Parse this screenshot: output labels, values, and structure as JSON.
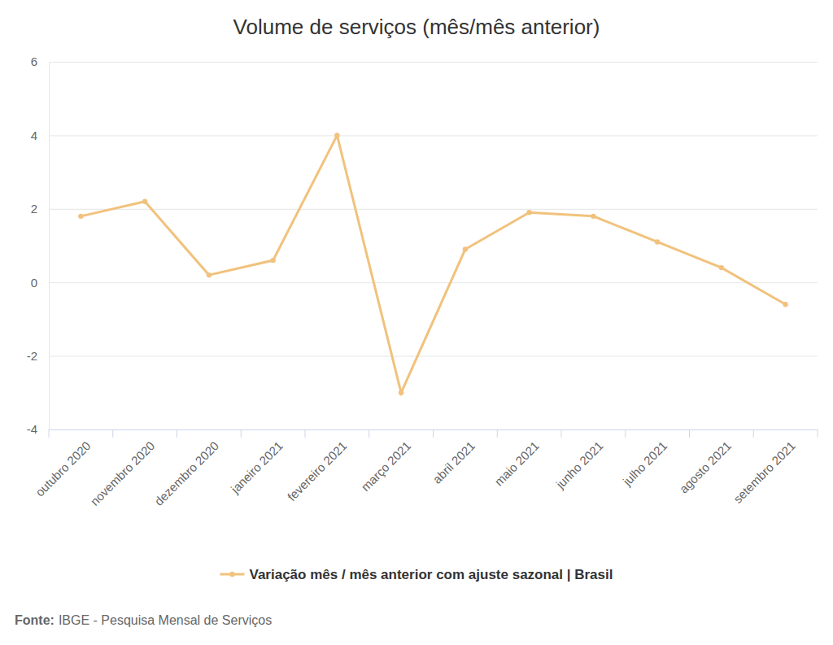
{
  "chart_data": {
    "type": "line",
    "title": "Volume de serviços (mês/mês anterior)",
    "categories": [
      "outubro 2020",
      "novembro 2020",
      "dezembro 2020",
      "janeiro 2021",
      "fevereiro 2021",
      "março 2021",
      "abril 2021",
      "maio 2021",
      "junho 2021",
      "julho 2021",
      "agosto 2021",
      "setembro 2021"
    ],
    "series": [
      {
        "name": "Variação mês / mês anterior com ajuste sazonal | Brasil",
        "color": "#f1c27d",
        "marker": "circle",
        "line_style": "solid",
        "values": [
          1.8,
          2.2,
          0.2,
          0.6,
          4.0,
          -3.0,
          0.9,
          1.9,
          1.8,
          1.1,
          0.4,
          -0.6
        ]
      }
    ],
    "ylim": [
      -4,
      6
    ],
    "yticks": [
      -4,
      -2,
      0,
      2,
      4,
      6
    ],
    "grid": true,
    "legend": "bottom",
    "source_label": "Fonte:",
    "source_text": "IBGE - Pesquisa Mensal de Serviços"
  }
}
